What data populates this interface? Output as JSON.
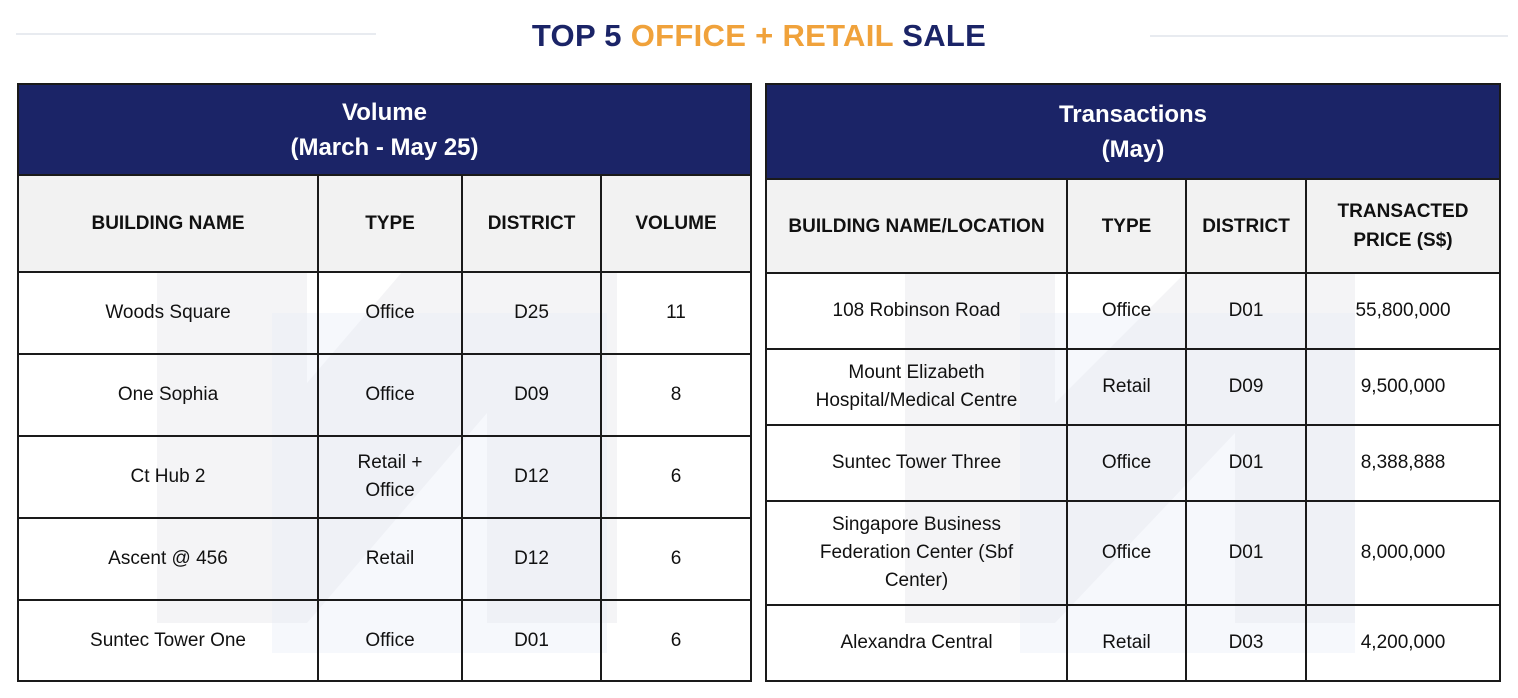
{
  "title": {
    "part1": "TOP 5",
    "part2": "OFFICE + RETAIL",
    "part3": "SALE"
  },
  "volume_table": {
    "heading_line1": "Volume",
    "heading_line2": "(March - May 25)",
    "columns": [
      "BUILDING NAME",
      "TYPE",
      "DISTRICT",
      "VOLUME"
    ],
    "rows": [
      {
        "name": "Woods Square",
        "type": "Office",
        "district": "D25",
        "volume": "11"
      },
      {
        "name": "One Sophia",
        "type": "Office",
        "district": "D09",
        "volume": "8"
      },
      {
        "name": "Ct Hub 2",
        "type": "Retail + Office",
        "district": "D12",
        "volume": "6"
      },
      {
        "name": "Ascent @ 456",
        "type": "Retail",
        "district": "D12",
        "volume": "6"
      },
      {
        "name": "Suntec Tower One",
        "type": "Office",
        "district": "D01",
        "volume": "6"
      }
    ]
  },
  "transactions_table": {
    "heading_line1": "Transactions",
    "heading_line2": "(May)",
    "columns": [
      "BUILDING NAME/LOCATION",
      "TYPE",
      "DISTRICT",
      "TRANSACTED PRICE (S$)"
    ],
    "rows": [
      {
        "name": "108 Robinson Road",
        "type": "Office",
        "district": "D01",
        "price": "55,800,000"
      },
      {
        "name": "Mount Elizabeth Hospital/Medical Centre",
        "type": "Retail",
        "district": "D09",
        "price": "9,500,000"
      },
      {
        "name": "Suntec Tower Three",
        "type": "Office",
        "district": "D01",
        "price": "8,388,888"
      },
      {
        "name": "Singapore Business Federation Center (Sbf Center)",
        "type": "Office",
        "district": "D01",
        "price": "8,000,000"
      },
      {
        "name": "Alexandra Central",
        "type": "Retail",
        "district": "D03",
        "price": "4,200,000"
      }
    ]
  },
  "colors": {
    "navy": "#1b2467",
    "orange": "#f0a23b",
    "header_gray": "#f2f2f2"
  }
}
